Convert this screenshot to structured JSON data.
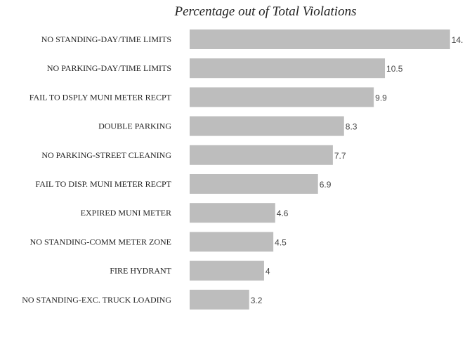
{
  "chart_data": {
    "type": "bar",
    "orientation": "horizontal",
    "title": "Percentage out of Total Violations",
    "categories": [
      "NO STANDING-DAY/TIME LIMITS",
      "NO PARKING-DAY/TIME LIMITS",
      "FAIL TO DSPLY MUNI METER RECPT",
      "DOUBLE PARKING",
      "NO PARKING-STREET CLEANING",
      "FAIL TO DISP. MUNI METER RECPT",
      "EXPIRED MUNI METER",
      "NO STANDING-COMM METER ZONE",
      "FIRE HYDRANT",
      "NO STANDING-EXC. TRUCK LOADING"
    ],
    "values": [
      14.0,
      10.5,
      9.9,
      8.3,
      7.7,
      6.9,
      4.6,
      4.5,
      4.0,
      3.2
    ],
    "value_labels": [
      "14.",
      "10.5",
      "9.9",
      "8.3",
      "7.7",
      "6.9",
      "4.6",
      "4.5",
      "4",
      "3.2"
    ],
    "xlabel": "",
    "ylabel": "",
    "xlim": [
      0,
      14.2
    ],
    "grid": false,
    "legend": "none",
    "bar_color": "#bdbdbd"
  }
}
